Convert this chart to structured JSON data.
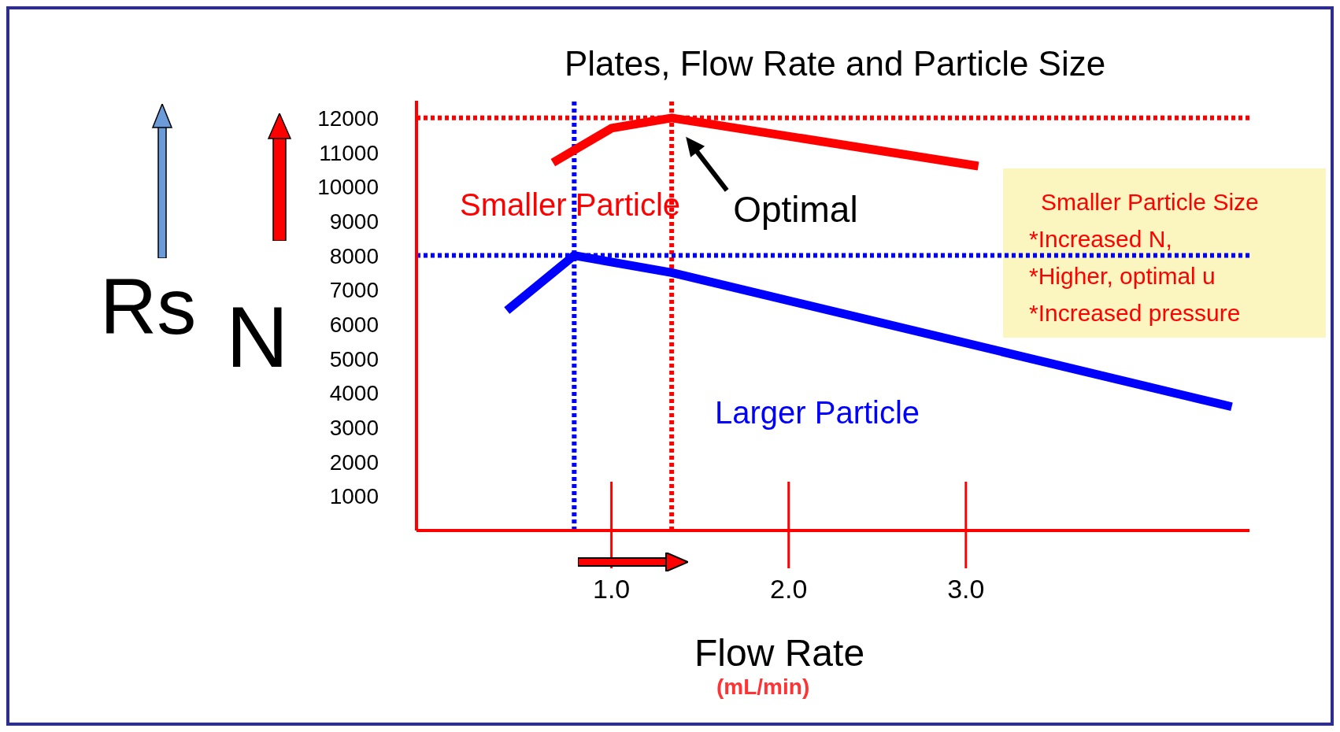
{
  "chart_data": {
    "type": "line",
    "title": "Plates, Flow Rate and Particle Size",
    "xlabel": "Flow Rate",
    "ylabel": "N",
    "xlim": [
      -0.1,
      4.6
    ],
    "xticks": [
      {
        "value": 1,
        "label": "1.0"
      },
      {
        "value": 2,
        "label": "2.0"
      },
      {
        "value": 3,
        "label": "3.0"
      }
    ],
    "ylim": [
      0,
      12500
    ],
    "yticks": [
      1000,
      2000,
      3000,
      4000,
      5000,
      6000,
      7000,
      8000,
      9000,
      10000,
      11000,
      12000
    ],
    "series": [
      {
        "name": "Smaller Particle",
        "color": "#ff0000",
        "x": [
          0.67,
          1.0,
          1.34,
          3.07
        ],
        "values": [
          10700,
          11700,
          12000,
          10600
        ]
      },
      {
        "name": "Larger Particle",
        "color": "#0000ff",
        "x": [
          0.41,
          0.79,
          1.34,
          4.5
        ],
        "values": [
          6400,
          8000,
          7500,
          3600
        ]
      }
    ],
    "ref_lines": [
      {
        "axis": "y",
        "value": 12000,
        "color": "#ff0000",
        "line_style": "dotted"
      },
      {
        "axis": "x",
        "value": 1.34,
        "color": "#ff0000",
        "line_style": "dotted"
      },
      {
        "axis": "y",
        "value": 8000,
        "color": "#0000ff",
        "line_style": "dotted"
      },
      {
        "axis": "x",
        "value": 0.79,
        "color": "#0000ff",
        "line_style": "dotted"
      }
    ],
    "annotations": [
      "Rs",
      "(mL/min)",
      "Smaller Particle Size",
      "*Increased N,",
      "*Higher, optimal u",
      "*Increased pressure",
      {
        "text": "Optimal",
        "x": 1.34,
        "y": 12000
      }
    ],
    "legend": false,
    "marker": "none",
    "line_style": "solid"
  }
}
